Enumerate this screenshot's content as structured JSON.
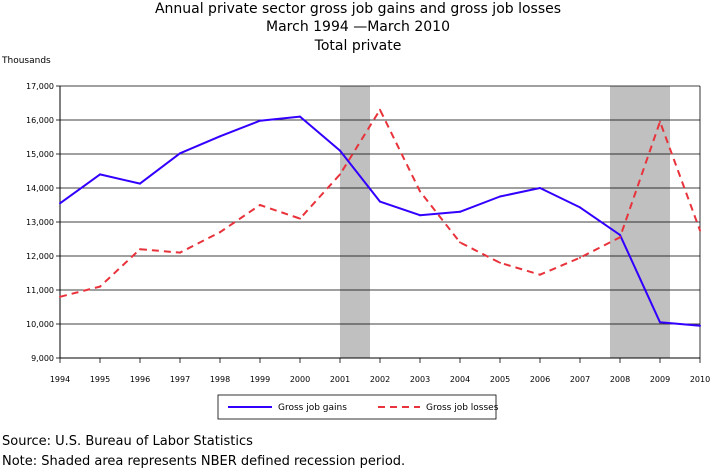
{
  "chart_data": {
    "type": "line",
    "title_lines": [
      "Annual private sector gross job gains and gross job losses",
      "March 1994 —March 2010",
      "Total private"
    ],
    "ylabel": "Thousands",
    "xlabel": "",
    "x": [
      1994,
      1995,
      1996,
      1997,
      1998,
      1999,
      2000,
      2001,
      2002,
      2003,
      2004,
      2005,
      2006,
      2007,
      2008,
      2009,
      2010
    ],
    "x_tick_labels": [
      "1994",
      "1995",
      "1996",
      "1997",
      "1998",
      "1999",
      "2000",
      "2001",
      "2002",
      "2003",
      "2004",
      "2005",
      "2006",
      "2007",
      "2008",
      "2009",
      "2010"
    ],
    "ylim": [
      9000,
      17000
    ],
    "y_ticks": [
      9000,
      10000,
      11000,
      12000,
      13000,
      14000,
      15000,
      16000,
      17000
    ],
    "y_tick_labels": [
      "9,000",
      "10,000",
      "11,000",
      "12,000",
      "13,000",
      "14,000",
      "15,000",
      "16,000",
      "17,000"
    ],
    "grid": "horizontal",
    "series": [
      {
        "name": "Gross job gains",
        "color": "#3300ff",
        "style": "solid",
        "points": [
          [
            1994.0,
            13550
          ],
          [
            1995.0,
            14400
          ],
          [
            1996.0,
            14130
          ],
          [
            1997.0,
            15020
          ],
          [
            1998.0,
            15520
          ],
          [
            1999.0,
            15980
          ],
          [
            2000.0,
            16100
          ],
          [
            2001.0,
            15100
          ],
          [
            2002.0,
            13600
          ],
          [
            2003.0,
            13200
          ],
          [
            2004.0,
            13300
          ],
          [
            2005.0,
            13750
          ],
          [
            2006.0,
            14000
          ],
          [
            2007.0,
            13430
          ],
          [
            2008.0,
            12620
          ],
          [
            2009.0,
            10050
          ],
          [
            2010.0,
            9950
          ]
        ]
      },
      {
        "name": "Gross job losses",
        "color": "#e8333c",
        "style": "dashed",
        "points": [
          [
            1994.0,
            10800
          ],
          [
            1995.0,
            11100
          ],
          [
            1996.0,
            12200
          ],
          [
            1997.0,
            12100
          ],
          [
            1998.0,
            12700
          ],
          [
            1999.0,
            13500
          ],
          [
            2000.0,
            13100
          ],
          [
            2001.0,
            14400
          ],
          [
            2002.0,
            16300
          ],
          [
            2003.0,
            13900
          ],
          [
            2004.0,
            12400
          ],
          [
            2005.0,
            11800
          ],
          [
            2006.0,
            11450
          ],
          [
            2007.0,
            11950
          ],
          [
            2008.0,
            12550
          ],
          [
            2009.0,
            15950
          ],
          [
            2010.0,
            12750
          ]
        ]
      }
    ],
    "recession_shading": [
      [
        2001.0,
        2001.75
      ],
      [
        2007.75,
        2009.25
      ]
    ],
    "shading_color": "#c0c0c0",
    "legend_position": "bottom"
  },
  "footer": {
    "source": "Source: U.S. Bureau of Labor Statistics",
    "note": "Note: Shaded area represents NBER defined recession period."
  }
}
